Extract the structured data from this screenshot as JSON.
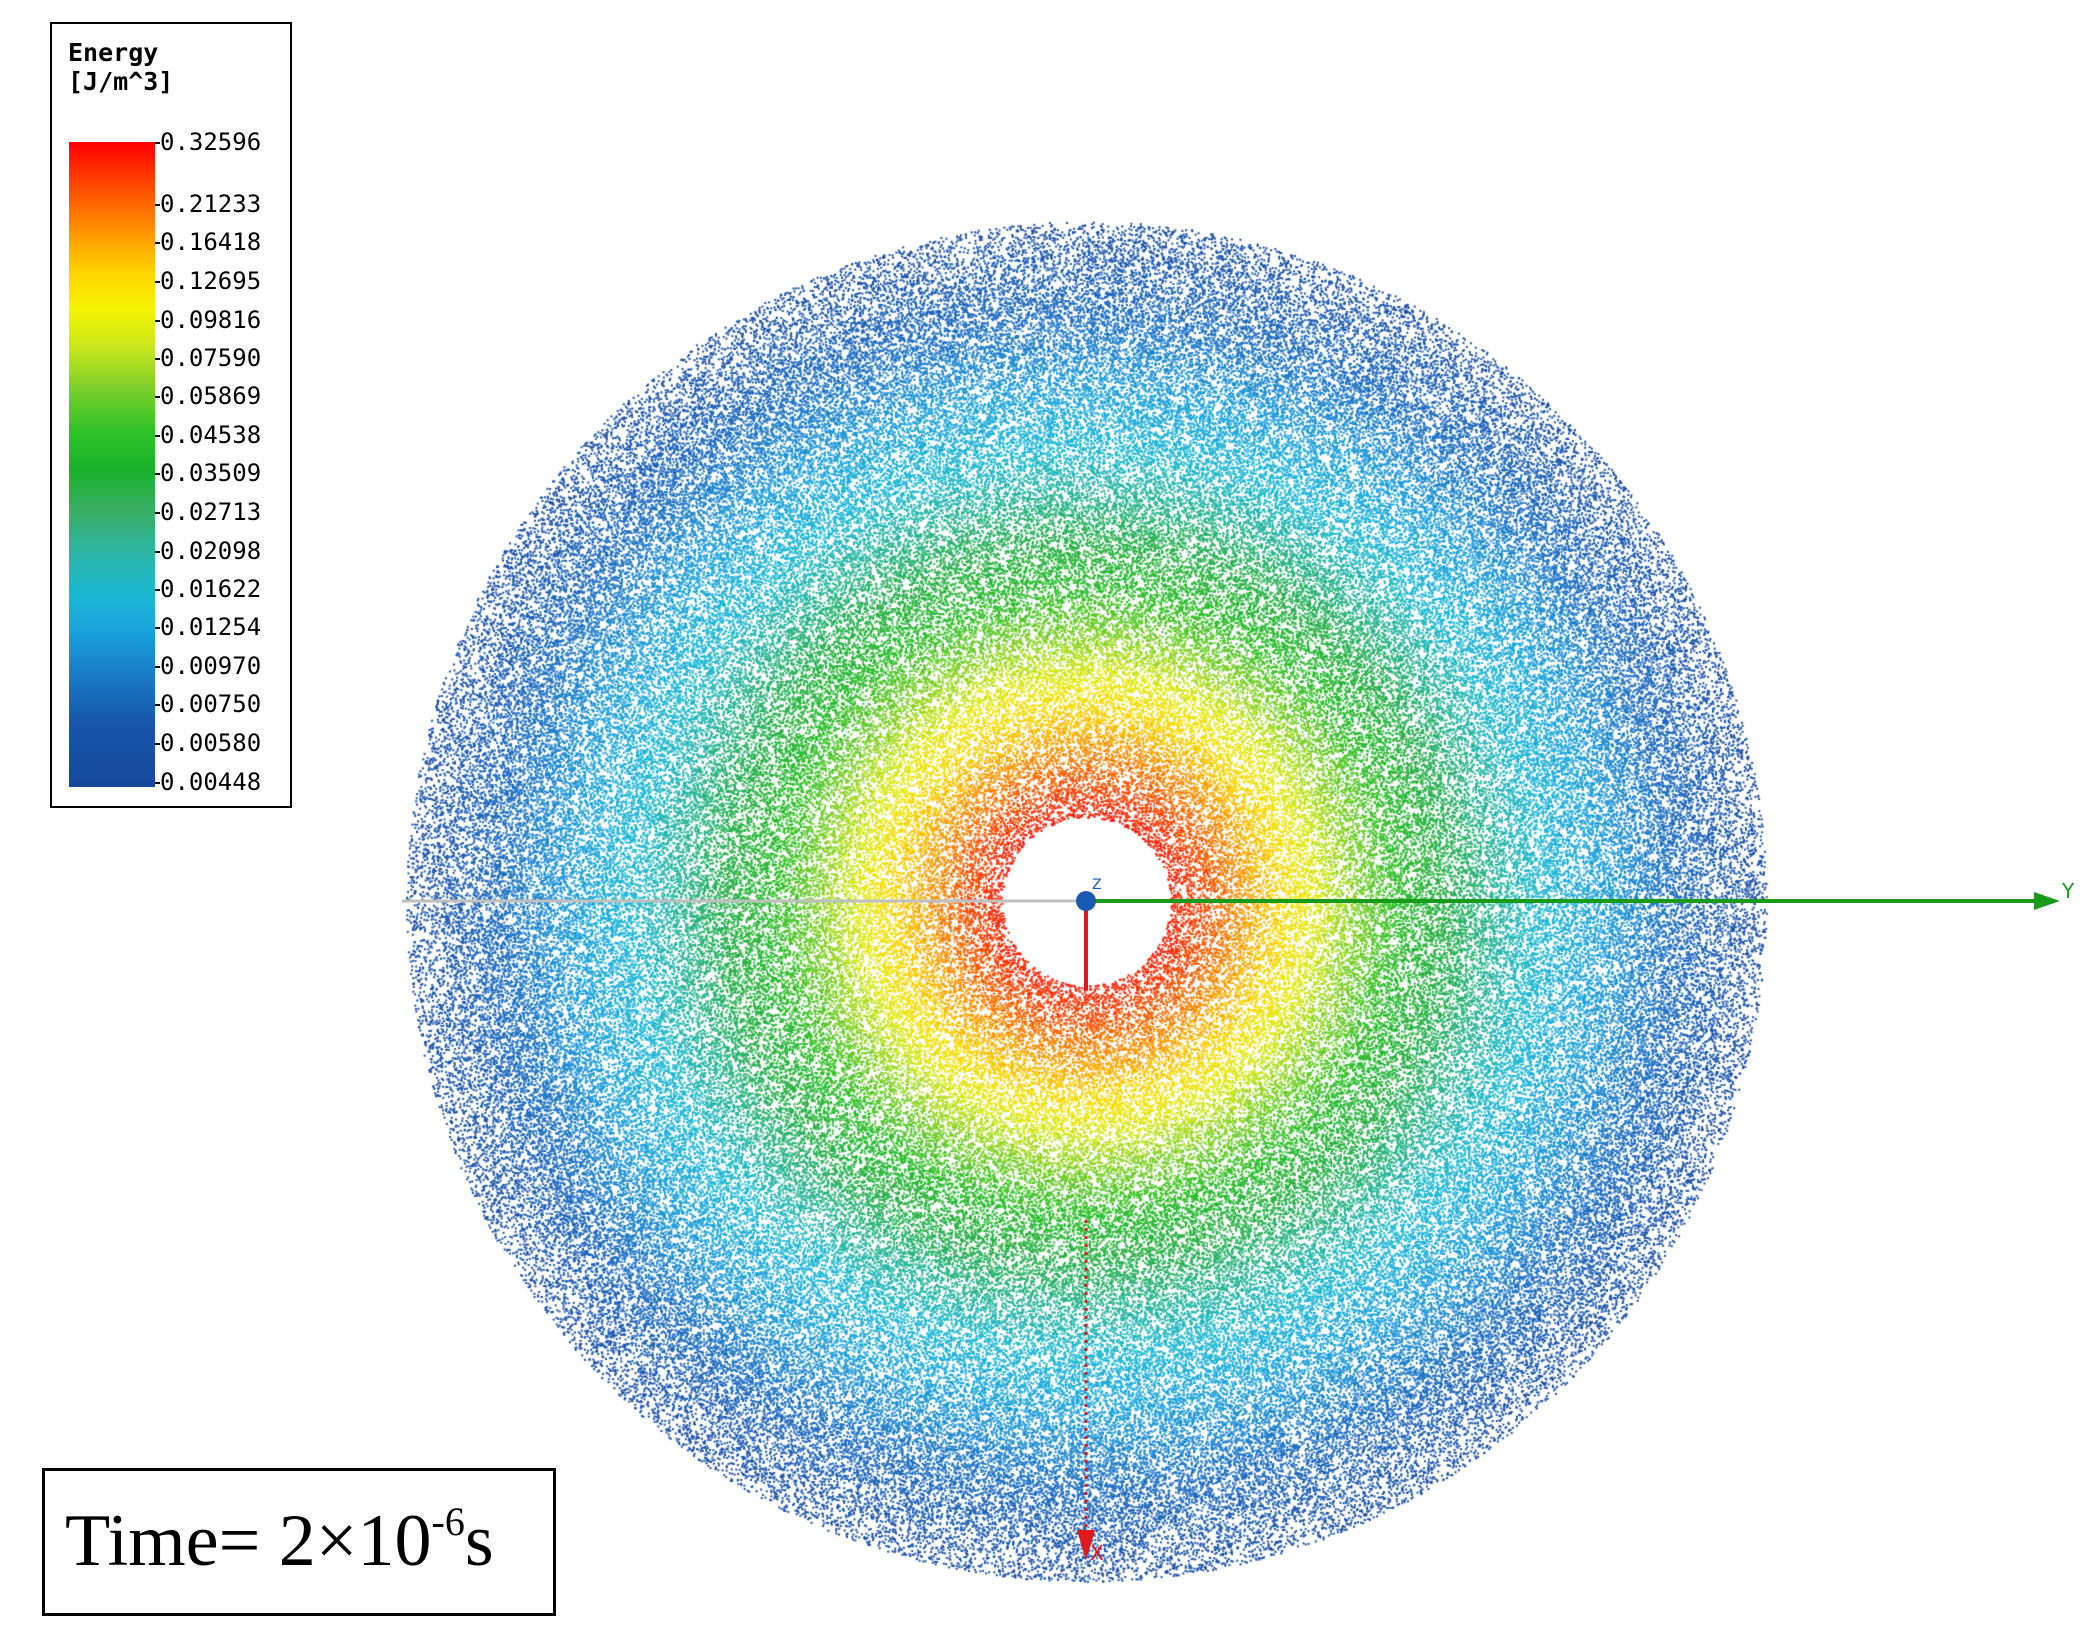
{
  "legend": {
    "title_line1": "Energy",
    "title_line2": "[J/m^3]",
    "ticks": [
      "0.32596",
      "0.21233",
      "0.16418",
      "0.12695",
      "0.09816",
      "0.07590",
      "0.05869",
      "0.04538",
      "0.03509",
      "0.02713",
      "0.02098",
      "0.01622",
      "0.01254",
      "0.00970",
      "0.00750",
      "0.00580",
      "0.00448"
    ]
  },
  "time_label": {
    "prefix": "Time= 2×10",
    "exponent": "-6",
    "unit": "s"
  },
  "axes": {
    "y_label": "Y",
    "x_label": "X",
    "z_label": "Z",
    "y_color": "#1a9a1a",
    "x_color": "#e01818"
  },
  "color_scale": {
    "max": "#ff0000",
    "mid": "#19b02b",
    "min": "#16489a"
  }
}
